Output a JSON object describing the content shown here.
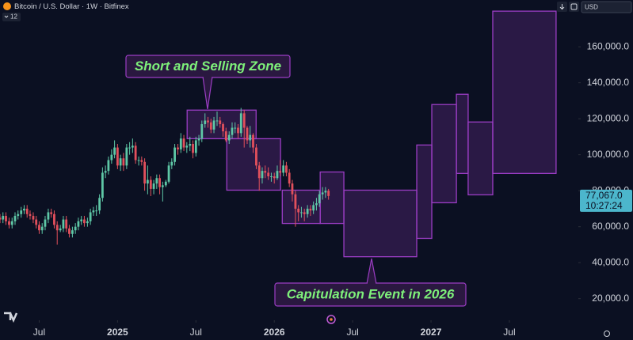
{
  "chart_data": {
    "type": "candlestick",
    "title": "Bitcoin / U.S. Dollar · 1W · Bitfinex",
    "badge": "12",
    "currency": "USD",
    "up_color": "#5ec7a6",
    "down_color": "#e2505c",
    "zone_color": "#9b3dc4",
    "grid": false,
    "xlim": [
      2024.25,
      2027.94
    ],
    "ylim": [
      8000,
      186000
    ],
    "xticks": [
      {
        "value": 2024.5,
        "label": "Jul"
      },
      2025,
      {
        "value": 2025.5,
        "label": "Jul"
      },
      2026,
      {
        "value": 2026.5,
        "label": "Jul"
      },
      2027,
      {
        "value": 2027.5,
        "label": "Jul"
      }
    ],
    "yticks": [
      {
        "value": 20000,
        "label": "20,000.0"
      },
      {
        "value": 40000,
        "label": "40,000.0"
      },
      {
        "value": 60000,
        "label": "60,000.0"
      },
      {
        "value": 80000,
        "label": "80,000.0"
      },
      {
        "value": 100000,
        "label": "100,000.0"
      },
      {
        "value": 120000,
        "label": "120,000.0"
      },
      {
        "value": 140000,
        "label": "140,000.0"
      },
      {
        "value": 160000,
        "label": "160,000.0"
      }
    ],
    "x": [
      2024.25,
      2024.269,
      2024.288,
      2024.308,
      2024.327,
      2024.346,
      2024.365,
      2024.385,
      2024.404,
      2024.423,
      2024.442,
      2024.462,
      2024.481,
      2024.5,
      2024.519,
      2024.538,
      2024.558,
      2024.577,
      2024.596,
      2024.615,
      2024.635,
      2024.654,
      2024.673,
      2024.692,
      2024.712,
      2024.731,
      2024.75,
      2024.769,
      2024.788,
      2024.808,
      2024.827,
      2024.846,
      2024.865,
      2024.885,
      2024.904,
      2024.923,
      2024.942,
      2024.962,
      2024.981,
      2025.0,
      2025.019,
      2025.038,
      2025.058,
      2025.077,
      2025.096,
      2025.115,
      2025.135,
      2025.154,
      2025.173,
      2025.192,
      2025.212,
      2025.231,
      2025.25,
      2025.269,
      2025.288,
      2025.308,
      2025.327,
      2025.346,
      2025.365,
      2025.385,
      2025.404,
      2025.423,
      2025.442,
      2025.462,
      2025.481,
      2025.5,
      2025.519,
      2025.538,
      2025.558,
      2025.577,
      2025.596,
      2025.615,
      2025.635,
      2025.654,
      2025.673,
      2025.692,
      2025.712,
      2025.731,
      2025.75,
      2025.769,
      2025.788,
      2025.808,
      2025.827,
      2025.846,
      2025.865,
      2025.885,
      2025.904,
      2025.923,
      2025.942,
      2025.962,
      2025.981,
      2026.0,
      2026.019,
      2026.038,
      2026.058,
      2026.077,
      2026.096,
      2026.115,
      2026.135,
      2026.154,
      2026.173,
      2026.192,
      2026.212,
      2026.231,
      2026.25,
      2026.269,
      2026.288,
      2026.308,
      2026.327,
      2026.346
    ],
    "open": [
      65000,
      64000,
      66000,
      63000,
      61000,
      63000,
      66000,
      67000,
      69000,
      70000,
      67000,
      66000,
      64000,
      61000,
      58000,
      60000,
      64000,
      68000,
      67000,
      61000,
      58000,
      59000,
      64000,
      59000,
      56000,
      58000,
      60000,
      63000,
      64000,
      62000,
      63000,
      68000,
      69000,
      69000,
      76000,
      90000,
      91000,
      97000,
      100000,
      104000,
      94000,
      98000,
      94000,
      104000,
      104000,
      105000,
      97000,
      97000,
      96000,
      84000,
      86000,
      81000,
      84000,
      87000,
      82000,
      83000,
      85000,
      94000,
      96000,
      104000,
      103000,
      109000,
      104000,
      105000,
      106000,
      101000,
      108000,
      109000,
      117000,
      119000,
      118000,
      114000,
      119000,
      119000,
      117000,
      113000,
      108000,
      111000,
      115000,
      115000,
      112000,
      123000,
      115000,
      108000,
      111000,
      104000,
      94000,
      87000,
      91000,
      90000,
      88000,
      88000,
      87000,
      91000,
      90000,
      94000,
      90000,
      84000,
      78000,
      70000,
      68000,
      68000,
      67000,
      70000,
      69000,
      72000,
      73000,
      78000,
      79000,
      80000
    ],
    "high": [
      67000,
      68000,
      68000,
      65000,
      65000,
      68000,
      69000,
      71000,
      72000,
      72000,
      69000,
      68000,
      66000,
      63000,
      62000,
      66000,
      70000,
      70000,
      69000,
      63000,
      61000,
      66000,
      66000,
      61000,
      60000,
      62000,
      65000,
      66000,
      66000,
      65000,
      70000,
      71000,
      72000,
      78000,
      93000,
      94000,
      99000,
      103000,
      108000,
      106000,
      100000,
      101000,
      106000,
      107000,
      109000,
      107000,
      99000,
      99000,
      98000,
      94000,
      88000,
      86000,
      89000,
      89000,
      85000,
      86000,
      96000,
      98000,
      106000,
      106000,
      112000,
      111000,
      107000,
      110000,
      108000,
      110000,
      111000,
      119000,
      123000,
      121000,
      120000,
      121000,
      124000,
      121000,
      118000,
      115000,
      113000,
      118000,
      118000,
      117000,
      126000,
      125000,
      116000,
      116000,
      112000,
      106000,
      96000,
      93000,
      94000,
      93000,
      90000,
      90000,
      94000,
      97000,
      97000,
      96000,
      92000,
      86000,
      80000,
      72000,
      71000,
      70000,
      72000,
      72000,
      74000,
      76000,
      80000,
      82000,
      82000,
      81000
    ],
    "low": [
      62000,
      62000,
      61000,
      59000,
      59000,
      61000,
      64000,
      65000,
      67000,
      65000,
      64000,
      62000,
      59000,
      56000,
      56000,
      58000,
      62000,
      65000,
      59000,
      50000,
      57000,
      57000,
      57000,
      54000,
      54000,
      56000,
      58000,
      61000,
      60000,
      60000,
      61000,
      66000,
      66000,
      67000,
      74000,
      87000,
      89000,
      95000,
      98000,
      92000,
      91000,
      91000,
      92000,
      100000,
      101000,
      95000,
      94000,
      94000,
      80000,
      78000,
      77000,
      78000,
      81000,
      78000,
      74000,
      82000,
      84000,
      92000,
      94000,
      100000,
      101000,
      102000,
      101000,
      102000,
      98000,
      99000,
      105000,
      107000,
      115000,
      115000,
      112000,
      112000,
      116000,
      115000,
      110000,
      107000,
      106000,
      109000,
      112000,
      109000,
      110000,
      104000,
      106000,
      104000,
      101000,
      92000,
      80000,
      84000,
      87000,
      86000,
      85000,
      84000,
      86000,
      88000,
      88000,
      88000,
      82000,
      74000,
      60000,
      63000,
      65000,
      63000,
      65000,
      66000,
      67000,
      69000,
      71000,
      75000,
      76000,
      75000
    ],
    "close": [
      64000,
      66000,
      63000,
      61000,
      63000,
      66000,
      67000,
      69000,
      70000,
      67000,
      66000,
      64000,
      61000,
      58000,
      60000,
      64000,
      68000,
      67000,
      61000,
      58000,
      59000,
      64000,
      59000,
      56000,
      58000,
      60000,
      63000,
      64000,
      62000,
      63000,
      68000,
      69000,
      69000,
      76000,
      90000,
      91000,
      97000,
      100000,
      104000,
      94000,
      98000,
      94000,
      104000,
      104000,
      105000,
      97000,
      97000,
      96000,
      84000,
      86000,
      81000,
      84000,
      87000,
      82000,
      83000,
      85000,
      94000,
      96000,
      104000,
      103000,
      109000,
      104000,
      105000,
      106000,
      101000,
      108000,
      109000,
      117000,
      119000,
      118000,
      114000,
      119000,
      119000,
      117000,
      113000,
      108000,
      111000,
      115000,
      115000,
      112000,
      123000,
      115000,
      108000,
      111000,
      104000,
      94000,
      87000,
      91000,
      90000,
      88000,
      88000,
      87000,
      91000,
      90000,
      94000,
      90000,
      84000,
      78000,
      70000,
      68000,
      68000,
      67000,
      70000,
      69000,
      72000,
      73000,
      78000,
      79000,
      80000,
      77067
    ],
    "price_label": {
      "value": 77067,
      "label": "77,067.0"
    },
    "countdown": "10:27:24",
    "zones": [
      {
        "x": [
          2025.444,
          2025.884
        ],
        "y": [
          108900,
          124800
        ]
      },
      {
        "x": [
          2025.697,
          2026.04
        ],
        "y": [
          80300,
          108900
        ]
      },
      {
        "x": [
          2026.051,
          2026.293
        ],
        "y": [
          61800,
          80300
        ]
      },
      {
        "x": [
          2026.293,
          2026.444
        ],
        "y": [
          61800,
          90400
        ]
      },
      {
        "x": [
          2026.444,
          2026.909
        ],
        "y": [
          43300,
          80300
        ]
      },
      {
        "x": [
          2026.909,
          2027.005
        ],
        "y": [
          53500,
          105400
        ]
      },
      {
        "x": [
          2027.005,
          2027.162
        ],
        "y": [
          73300,
          127900
        ]
      },
      {
        "x": [
          2027.162,
          2027.237
        ],
        "y": [
          89600,
          133600
        ]
      },
      {
        "x": [
          2027.237,
          2027.394
        ],
        "y": [
          77700,
          118200
        ]
      },
      {
        "x": [
          2027.394,
          2027.798
        ],
        "y": [
          89600,
          179800
        ]
      }
    ],
    "annotations": [
      {
        "text": "Short and Selling Zone"
      },
      {
        "text": "Capitulation Event in 2026"
      }
    ]
  }
}
